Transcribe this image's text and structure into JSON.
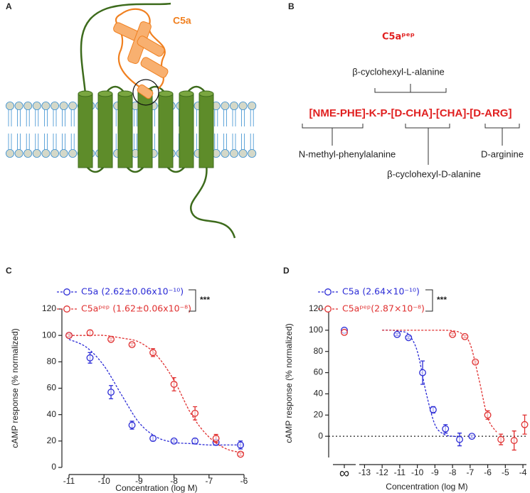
{
  "panel_labels": {
    "a": "A",
    "b": "B",
    "c": "C",
    "d": "D"
  },
  "panel_a": {
    "ligand_label": "C5a"
  },
  "panel_b": {
    "title": "C5aᵖᵉᵖ",
    "sequence": "[NME-PHE]-K-P-[D-CHA]-[CHA]-[D-ARG]",
    "annotations": [
      "β-cyclohexyl-L-alanine",
      "N-methyl-phenylalanine",
      "β-cyclohexyl-D-alanine",
      "D-arginine"
    ]
  },
  "chart_data": [
    {
      "type": "line",
      "y_label": "cAMP response (% normalized)",
      "x_label": "Concentration (log M)",
      "xlim": [
        -11,
        -6
      ],
      "xticks": [
        -11,
        -10,
        -9,
        -8,
        -7,
        -6
      ],
      "ylim": [
        0,
        120
      ],
      "yticks": [
        0,
        20,
        40,
        60,
        80,
        100,
        120
      ],
      "significance": "***",
      "series": [
        {
          "name": "C5a (2.62±0.06x10⁻¹⁰)",
          "color": "#2b2bd6",
          "x": [
            -11,
            -10.4,
            -9.8,
            -9.2,
            -8.6,
            -8,
            -7.4,
            -6.8,
            -6.1
          ],
          "values": [
            100,
            83,
            57,
            32,
            22,
            20,
            20,
            19,
            17
          ],
          "errors": [
            1,
            4,
            5,
            3,
            2,
            1,
            2,
            2,
            3
          ],
          "fit_x": [
            -11,
            -10.5,
            -10,
            -9.5,
            -9,
            -8.5,
            -8,
            -7.5,
            -7,
            -6.5,
            -6
          ],
          "fit_values": [
            97,
            91,
            77,
            55,
            34,
            23,
            19,
            18,
            17,
            17,
            17
          ]
        },
        {
          "name": "C5aᵖᵉᵖ (1.62±0.06x10⁻⁸)",
          "color": "#e03030",
          "x": [
            -11,
            -10.4,
            -9.8,
            -9.2,
            -8.6,
            -8,
            -7.4,
            -6.8,
            -6.1
          ],
          "values": [
            100,
            102,
            97,
            93,
            87,
            63,
            41,
            22,
            10
          ],
          "errors": [
            1,
            2,
            1,
            1,
            3,
            5,
            5,
            3,
            1
          ],
          "fit_x": [
            -11,
            -10.5,
            -10,
            -9.5,
            -9,
            -8.5,
            -8,
            -7.5,
            -7,
            -6.5,
            -6
          ],
          "fit_values": [
            100,
            100,
            100,
            98,
            95,
            85,
            66,
            40,
            23,
            14,
            11
          ]
        }
      ]
    },
    {
      "type": "line",
      "y_label": "cAMP response (% normalized)",
      "x_label": "Concentration (log M)",
      "xlim": [
        -13.3,
        -3.8
      ],
      "xticks": [
        -13,
        -12,
        -11,
        -10,
        -9,
        -8,
        -7,
        -6,
        -5,
        -4
      ],
      "ylim": [
        -20,
        120
      ],
      "yticks": [
        0,
        20,
        40,
        60,
        80,
        100,
        120
      ],
      "control_label": "∞",
      "zero_line": true,
      "significance": "***",
      "series": [
        {
          "name": "C5a (2.64×10⁻¹⁰)",
          "color": "#2b2bd6",
          "control_value": 100,
          "x": [
            -11.15,
            -10.5,
            -9.7,
            -9.1,
            -8.4,
            -7.6,
            -6.9
          ],
          "values": [
            96,
            93,
            60,
            25,
            7,
            -3,
            0
          ],
          "errors": [
            1,
            1,
            11,
            3,
            4,
            6,
            1
          ],
          "fit_x": [
            -12,
            -11.5,
            -11,
            -10.5,
            -10,
            -9.5,
            -9,
            -8.5,
            -8,
            -7.5
          ],
          "fit_values": [
            100,
            100,
            99,
            96,
            80,
            41,
            11,
            2,
            0,
            0
          ]
        },
        {
          "name": "C5aᵖᵉᵖ(2.87×10⁻⁸)",
          "color": "#e03030",
          "control_value": 98,
          "x": [
            -8,
            -7.3,
            -6.7,
            -6,
            -5.25,
            -4.5,
            -3.9
          ],
          "values": [
            96,
            94,
            70,
            20,
            -3,
            -4,
            11
          ],
          "errors": [
            1,
            1,
            1,
            4,
            5,
            9,
            9
          ],
          "fit_x": [
            -12,
            -11,
            -10,
            -9,
            -8.5,
            -8,
            -7.5,
            -7,
            -6.5,
            -6,
            -5.5
          ],
          "fit_values": [
            100,
            100,
            100,
            100,
            100,
            99.5,
            97,
            87,
            54,
            17.5,
            4
          ]
        }
      ]
    }
  ]
}
